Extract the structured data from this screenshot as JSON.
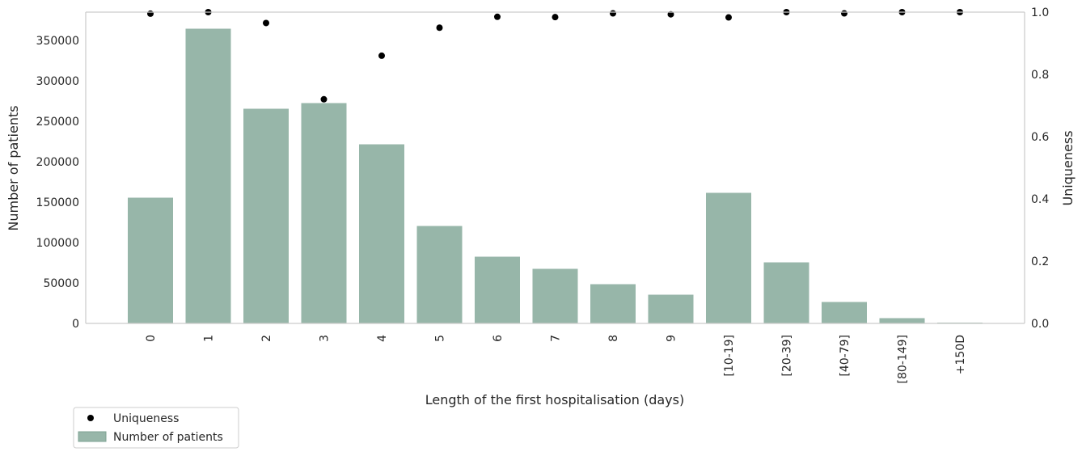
{
  "chart_data": {
    "type": "bar",
    "categories": [
      "0",
      "1",
      "2",
      "3",
      "4",
      "5",
      "6",
      "7",
      "8",
      "9",
      "[10-19]",
      "[20-39]",
      "[40-79]",
      "[80-149]",
      "+150D"
    ],
    "series": [
      {
        "name": "Number of patients",
        "type": "bar",
        "axis": "left",
        "color": "#97b6a9",
        "values": [
          156000,
          365000,
          266000,
          273000,
          222000,
          121000,
          83000,
          68000,
          49000,
          36000,
          162000,
          76000,
          27000,
          7000,
          1500
        ]
      },
      {
        "name": "Uniqueness",
        "type": "scatter",
        "axis": "right",
        "color": "#000000",
        "values": [
          0.995,
          1.0,
          0.965,
          0.72,
          0.86,
          0.95,
          0.985,
          0.984,
          0.996,
          0.993,
          0.983,
          1.0,
          0.996,
          1.0,
          1.0
        ]
      }
    ],
    "xlabel": "Length of the first hospitalisation (days)",
    "ylabel": "Number of patients",
    "y2label": "Uniqueness",
    "ylim": [
      0,
      385000
    ],
    "y2lim": [
      0,
      1.0
    ],
    "yticks": [
      0,
      50000,
      100000,
      150000,
      200000,
      250000,
      300000,
      350000
    ],
    "y2ticks": [
      "0.0",
      "0.2",
      "0.4",
      "0.6",
      "0.8",
      "1.0"
    ],
    "grid": false,
    "legend_position": "bottom-left",
    "legend": [
      "Uniqueness",
      "Number of patients"
    ]
  }
}
